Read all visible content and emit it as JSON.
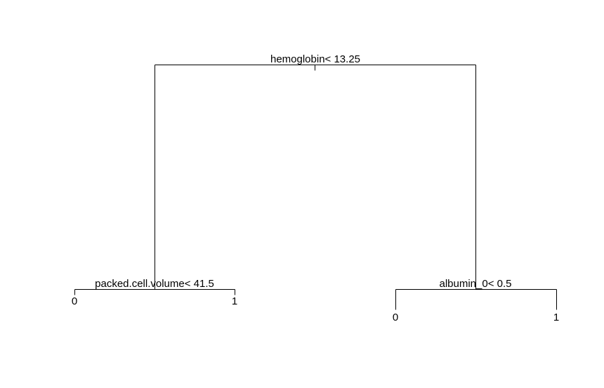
{
  "tree": {
    "root": {
      "split": "hemoglobin< 13.25",
      "left": {
        "split": "packed.cell.volume< 41.5",
        "left": {
          "leaf": "0"
        },
        "right": {
          "leaf": "1"
        }
      },
      "right": {
        "split": "albumin_0< 0.5",
        "left": {
          "leaf": "0"
        },
        "right": {
          "leaf": "1"
        }
      }
    }
  },
  "colors": {
    "line": "#000000",
    "text": "#000000",
    "background": "#ffffff"
  }
}
